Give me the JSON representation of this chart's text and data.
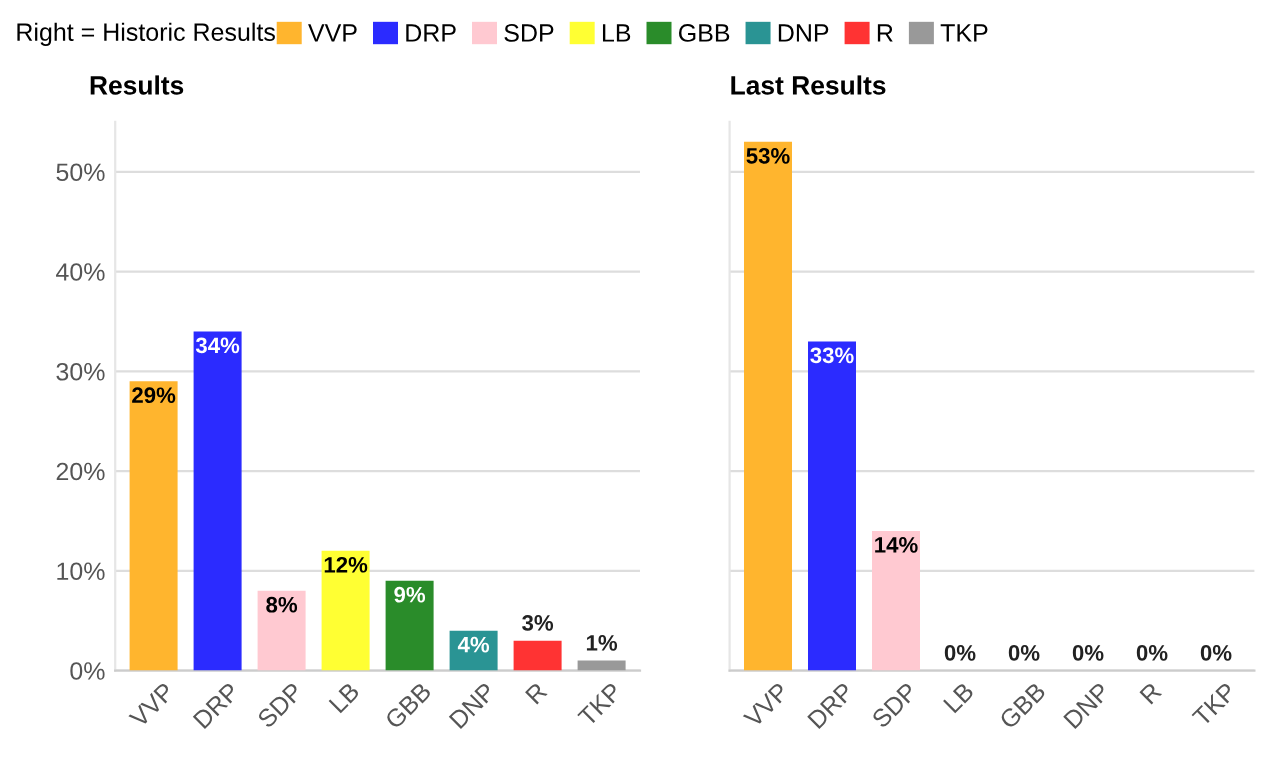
{
  "chart_data": [
    {
      "type": "bar",
      "title": "Results",
      "legend_title": "Right = Historic Results",
      "legend": "top",
      "categories": [
        "VVP",
        "DRP",
        "SDP",
        "LB",
        "GBB",
        "DNP",
        "R",
        "TKP"
      ],
      "series": [
        {
          "name": "VVP",
          "color": "#ffb52e",
          "values": [
            29,
            null,
            null,
            null,
            null,
            null,
            null,
            null
          ],
          "value_labels": [
            "29%",
            null,
            null,
            null,
            null,
            null,
            null,
            null
          ]
        },
        {
          "name": "DRP",
          "color": "#2b2bff",
          "values": [
            null,
            34,
            null,
            null,
            null,
            null,
            null,
            null
          ],
          "value_labels": [
            null,
            "34%",
            null,
            null,
            null,
            null,
            null,
            null
          ]
        },
        {
          "name": "SDP",
          "color": "#ffc9d1",
          "values": [
            null,
            null,
            8,
            null,
            null,
            null,
            null,
            null
          ],
          "value_labels": [
            null,
            null,
            "8%",
            null,
            null,
            null,
            null,
            null
          ]
        },
        {
          "name": "LB",
          "color": "#ffff33",
          "values": [
            null,
            null,
            null,
            12,
            null,
            null,
            null,
            null
          ],
          "value_labels": [
            null,
            null,
            null,
            "12%",
            null,
            null,
            null,
            null
          ]
        },
        {
          "name": "GBB",
          "color": "#2a8c2a",
          "values": [
            null,
            null,
            null,
            null,
            9,
            null,
            null,
            null
          ],
          "value_labels": [
            null,
            null,
            null,
            null,
            "9%",
            null,
            null,
            null
          ]
        },
        {
          "name": "DNP",
          "color": "#2a9494",
          "values": [
            null,
            null,
            null,
            null,
            null,
            4,
            null,
            null
          ],
          "value_labels": [
            null,
            null,
            null,
            null,
            null,
            "4%",
            null,
            null
          ]
        },
        {
          "name": "R",
          "color": "#ff3333",
          "values": [
            null,
            null,
            null,
            null,
            null,
            null,
            3,
            null
          ],
          "value_labels": [
            null,
            null,
            null,
            null,
            null,
            null,
            "3%",
            null
          ]
        },
        {
          "name": "TKP",
          "color": "#999999",
          "values": [
            null,
            null,
            null,
            null,
            null,
            null,
            null,
            1
          ],
          "value_labels": [
            null,
            null,
            null,
            null,
            null,
            null,
            null,
            "1%"
          ]
        }
      ],
      "ylim": [
        0,
        55
      ],
      "yticks": [
        {
          "value": 0,
          "label": "0%"
        },
        {
          "value": 10,
          "label": "10%"
        },
        {
          "value": 20,
          "label": "20%"
        },
        {
          "value": 30,
          "label": "30%"
        },
        {
          "value": 40,
          "label": "40%"
        },
        {
          "value": 50,
          "label": "50%"
        }
      ],
      "grid": "y"
    },
    {
      "type": "bar",
      "title": "Last Results",
      "categories": [
        "VVP",
        "DRP",
        "SDP",
        "LB",
        "GBB",
        "DNP",
        "R",
        "TKP"
      ],
      "series": [
        {
          "color": "#ffb52e",
          "values": [
            53,
            null,
            null,
            null,
            null,
            null,
            null,
            null
          ],
          "value_labels": [
            "53%",
            null,
            null,
            null,
            null,
            null,
            null,
            null
          ]
        },
        {
          "color": "#2b2bff",
          "values": [
            null,
            33,
            null,
            null,
            null,
            null,
            null,
            null
          ],
          "value_labels": [
            null,
            "33%",
            null,
            null,
            null,
            null,
            null,
            null
          ]
        },
        {
          "color": "#ffc9d1",
          "values": [
            null,
            null,
            14,
            null,
            null,
            null,
            null,
            null
          ],
          "value_labels": [
            null,
            null,
            "14%",
            null,
            null,
            null,
            null,
            null
          ]
        },
        {
          "color": "#ffff33",
          "values": [
            null,
            null,
            null,
            0,
            null,
            null,
            null,
            null
          ],
          "value_labels": [
            null,
            null,
            null,
            "0%",
            null,
            null,
            null,
            null
          ]
        },
        {
          "color": "#2a8c2a",
          "values": [
            null,
            null,
            null,
            null,
            0,
            null,
            null,
            null
          ],
          "value_labels": [
            null,
            null,
            null,
            null,
            "0%",
            null,
            null,
            null
          ]
        },
        {
          "color": "#2a9494",
          "values": [
            null,
            null,
            null,
            null,
            null,
            0,
            null,
            null
          ],
          "value_labels": [
            null,
            null,
            null,
            null,
            null,
            "0%",
            null,
            null
          ]
        },
        {
          "color": "#ff3333",
          "values": [
            null,
            null,
            null,
            null,
            null,
            null,
            0,
            null
          ],
          "value_labels": [
            null,
            null,
            null,
            null,
            null,
            null,
            "0%",
            null
          ]
        },
        {
          "color": "#999999",
          "values": [
            null,
            null,
            null,
            null,
            null,
            null,
            null,
            0
          ],
          "value_labels": [
            null,
            null,
            null,
            null,
            null,
            null,
            null,
            "0%"
          ]
        }
      ],
      "ylim": [
        0,
        55
      ],
      "yticks": [
        0,
        10,
        20,
        30,
        40,
        50
      ],
      "grid": "y",
      "tick_labels": "x"
    }
  ]
}
